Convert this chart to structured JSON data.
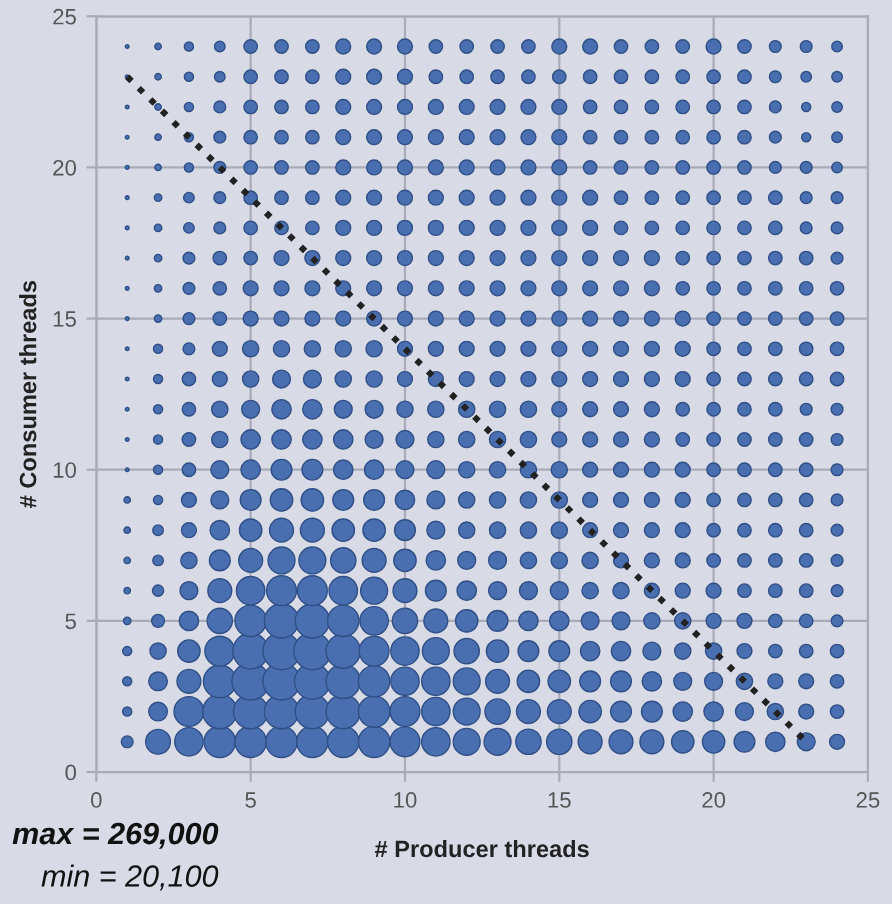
{
  "chart_data": {
    "type": "bubble",
    "xlabel": "# Producer threads",
    "ylabel": "# Consumer threads",
    "xlim": [
      0,
      25
    ],
    "ylim": [
      0,
      25
    ],
    "xticks": [
      0,
      5,
      10,
      15,
      20,
      25
    ],
    "yticks": [
      0,
      5,
      10,
      15,
      20,
      25
    ],
    "grid": true,
    "legend": false,
    "annotations": [
      "max = 269,000",
      "min = 20,100"
    ],
    "series": [
      {
        "color": "#4a6fb0",
        "x": [
          1,
          2,
          3,
          4,
          5,
          6,
          7,
          8,
          9,
          10,
          11,
          12,
          13,
          14,
          15,
          16,
          17,
          18,
          19,
          20,
          21,
          22,
          23,
          24,
          1,
          2,
          3,
          4,
          5,
          6,
          7,
          8,
          9,
          10,
          11,
          12,
          13,
          14,
          15,
          16,
          17,
          18,
          19,
          20,
          21,
          22,
          23,
          24,
          1,
          2,
          3,
          4,
          5,
          6,
          7,
          8,
          9,
          10,
          11,
          12,
          13,
          14,
          15,
          16,
          17,
          18,
          19,
          20,
          21,
          22,
          23,
          24,
          1,
          2,
          3,
          4,
          5,
          6,
          7,
          8,
          9,
          10,
          11,
          12,
          13,
          14,
          15,
          16,
          17,
          18,
          19,
          20,
          21,
          22,
          23,
          24,
          1,
          2,
          3,
          4,
          5,
          6,
          7,
          8,
          9,
          10,
          11,
          12,
          13,
          14,
          15,
          16,
          17,
          18,
          19,
          20,
          21,
          22,
          23,
          24,
          1,
          2,
          3,
          4,
          5,
          6,
          7,
          8,
          9,
          10,
          11,
          12,
          13,
          14,
          15,
          16,
          17,
          18,
          19,
          20,
          21,
          22,
          23,
          24,
          1,
          2,
          3,
          4,
          5,
          6,
          7,
          8,
          9,
          10,
          11,
          12,
          13,
          14,
          15,
          16,
          17,
          18,
          19,
          20,
          21,
          22,
          23,
          24,
          1,
          2,
          3,
          4,
          5,
          6,
          7,
          8,
          9,
          10,
          11,
          12,
          13,
          14,
          15,
          16,
          17,
          18,
          19,
          20,
          21,
          22,
          23,
          24,
          1,
          2,
          3,
          4,
          5,
          6,
          7,
          8,
          9,
          10,
          11,
          12,
          13,
          14,
          15,
          16,
          17,
          18,
          19,
          20,
          21,
          22,
          23,
          24,
          1,
          2,
          3,
          4,
          5,
          6,
          7,
          8,
          9,
          10,
          11,
          12,
          13,
          14,
          15,
          16,
          17,
          18,
          19,
          20,
          21,
          22,
          23,
          24,
          1,
          2,
          3,
          4,
          5,
          6,
          7,
          8,
          9,
          10,
          11,
          12,
          13,
          14,
          15,
          16,
          17,
          18,
          19,
          20,
          21,
          22,
          23,
          24,
          1,
          2,
          3,
          4,
          5,
          6,
          7,
          8,
          9,
          10,
          11,
          12,
          13,
          14,
          15,
          16,
          17,
          18,
          19,
          20,
          21,
          22,
          23,
          24,
          1,
          2,
          3,
          4,
          5,
          6,
          7,
          8,
          9,
          10,
          11,
          12,
          13,
          14,
          15,
          16,
          17,
          18,
          19,
          20,
          21,
          22,
          23,
          24,
          1,
          2,
          3,
          4,
          5,
          6,
          7,
          8,
          9,
          10,
          11,
          12,
          13,
          14,
          15,
          16,
          17,
          18,
          19,
          20,
          21,
          22,
          23,
          24,
          1,
          2,
          3,
          4,
          5,
          6,
          7,
          8,
          9,
          10,
          11,
          12,
          13,
          14,
          15,
          16,
          17,
          18,
          19,
          20,
          21,
          22,
          23,
          24,
          1,
          2,
          3,
          4,
          5,
          6,
          7,
          8,
          9,
          10,
          11,
          12,
          13,
          14,
          15,
          16,
          17,
          18,
          19,
          20,
          21,
          22,
          23,
          24,
          1,
          2,
          3,
          4,
          5,
          6,
          7,
          8,
          9,
          10,
          11,
          12,
          13,
          14,
          15,
          16,
          17,
          18,
          19,
          20,
          21,
          22,
          23,
          24,
          1,
          2,
          3,
          4,
          5,
          6,
          7,
          8,
          9,
          10,
          11,
          12,
          13,
          14,
          15,
          16,
          17,
          18,
          19,
          20,
          21,
          22,
          23,
          24,
          1,
          2,
          3,
          4,
          5,
          6,
          7,
          8,
          9,
          10,
          11,
          12,
          13,
          14,
          15,
          16,
          17,
          18,
          19,
          20,
          21,
          22,
          23,
          24,
          1,
          2,
          3,
          4,
          5,
          6,
          7,
          8,
          9,
          10,
          11,
          12,
          13,
          14,
          15,
          16,
          17,
          18,
          19,
          20,
          21,
          22,
          23,
          24,
          1,
          2,
          3,
          4,
          5,
          6,
          7,
          8,
          9,
          10,
          11,
          12,
          13,
          14,
          15,
          16,
          17,
          18,
          19,
          20,
          21,
          22,
          23,
          24,
          1,
          2,
          3,
          4,
          5,
          6,
          7,
          8,
          9,
          10,
          11,
          12,
          13,
          14,
          15,
          16,
          17,
          18,
          19,
          20,
          21,
          22,
          23,
          24,
          1,
          2,
          3,
          4,
          5,
          6,
          7,
          8,
          9,
          10,
          11,
          12,
          13,
          14,
          15,
          16,
          17,
          18,
          19,
          20,
          21,
          22,
          23,
          24,
          1,
          2,
          3,
          4,
          5,
          6,
          7,
          8,
          9,
          10,
          11,
          12,
          13,
          14,
          15,
          16,
          17,
          18,
          19,
          20,
          21,
          22,
          23,
          24
        ],
        "values": [
          1,
          1,
          1,
          1,
          1,
          1,
          1,
          1,
          1,
          1,
          1,
          1,
          1,
          1,
          1,
          1,
          1,
          1,
          1,
          1,
          1,
          1,
          1,
          1,
          2,
          2,
          2,
          2,
          2,
          2,
          2,
          2,
          2,
          2,
          2,
          2,
          2,
          2,
          2,
          2,
          2,
          2,
          2,
          2,
          2,
          2,
          2,
          2,
          3,
          3,
          3,
          3,
          3,
          3,
          3,
          3,
          3,
          3,
          3,
          3,
          3,
          3,
          3,
          3,
          3,
          3,
          3,
          3,
          3,
          3,
          3,
          3,
          4,
          4,
          4,
          4,
          4,
          4,
          4,
          4,
          4,
          4,
          4,
          4,
          4,
          4,
          4,
          4,
          4,
          4,
          4,
          4,
          4,
          4,
          4,
          4,
          5,
          5,
          5,
          5,
          5,
          5,
          5,
          5,
          5,
          5,
          5,
          5,
          5,
          5,
          5,
          5,
          5,
          5,
          5,
          5,
          5,
          5,
          5,
          5,
          6,
          6,
          6,
          6,
          6,
          6,
          6,
          6,
          6,
          6,
          6,
          6,
          6,
          6,
          6,
          6,
          6,
          6,
          6,
          6,
          6,
          6,
          6,
          6,
          7,
          7,
          7,
          7,
          7,
          7,
          7,
          7,
          7,
          7,
          7,
          7,
          7,
          7,
          7,
          7,
          7,
          7,
          7,
          7,
          7,
          7,
          7,
          7,
          8,
          8,
          8,
          8,
          8,
          8,
          8,
          8,
          8,
          8,
          8,
          8,
          8,
          8,
          8,
          8,
          8,
          8,
          8,
          8,
          8,
          8,
          8,
          8,
          9,
          9,
          9,
          9,
          9,
          9,
          9,
          9,
          9,
          9,
          9,
          9,
          9,
          9,
          9,
          9,
          9,
          9,
          9,
          9,
          9,
          9,
          9,
          9,
          10,
          10,
          10,
          10,
          10,
          10,
          10,
          10,
          10,
          10,
          10,
          10,
          10,
          10,
          10,
          10,
          10,
          10,
          10,
          10,
          10,
          10,
          10,
          10,
          11,
          11,
          11,
          11,
          11,
          11,
          11,
          11,
          11,
          11,
          11,
          11,
          11,
          11,
          11,
          11,
          11,
          11,
          11,
          11,
          11,
          11,
          11,
          11,
          12,
          12,
          12,
          12,
          12,
          12,
          12,
          12,
          12,
          12,
          12,
          12,
          12,
          12,
          12,
          12,
          12,
          12,
          12,
          12,
          12,
          12,
          12,
          12,
          13,
          13,
          13,
          13,
          13,
          13,
          13,
          13,
          13,
          13,
          13,
          13,
          13,
          13,
          13,
          13,
          13,
          13,
          13,
          13,
          13,
          13,
          13,
          13,
          14,
          14,
          14,
          14,
          14,
          14,
          14,
          14,
          14,
          14,
          14,
          14,
          14,
          14,
          14,
          14,
          14,
          14,
          14,
          14,
          14,
          14,
          14,
          14,
          15,
          15,
          15,
          15,
          15,
          15,
          15,
          15,
          15,
          15,
          15,
          15,
          15,
          15,
          15,
          15,
          15,
          15,
          15,
          15,
          15,
          15,
          15,
          15,
          16,
          16,
          16,
          16,
          16,
          16,
          16,
          16,
          16,
          16,
          16,
          16,
          16,
          16,
          16,
          16,
          16,
          16,
          16,
          16,
          16,
          16,
          16,
          16,
          17,
          17,
          17,
          17,
          17,
          17,
          17,
          17,
          17,
          17,
          17,
          17,
          17,
          17,
          17,
          17,
          17,
          17,
          17,
          17,
          17,
          17,
          17,
          17,
          18,
          18,
          18,
          18,
          18,
          18,
          18,
          18,
          18,
          18,
          18,
          18,
          18,
          18,
          18,
          18,
          18,
          18,
          18,
          18,
          18,
          18,
          18,
          18,
          19,
          19,
          19,
          19,
          19,
          19,
          19,
          19,
          19,
          19,
          19,
          19,
          19,
          19,
          19,
          19,
          19,
          19,
          19,
          19,
          19,
          19,
          19,
          19,
          20,
          20,
          20,
          20,
          20,
          20,
          20,
          20,
          20,
          20,
          20,
          20,
          20,
          20,
          20,
          20,
          20,
          20,
          20,
          20,
          20,
          20,
          20,
          20,
          21,
          21,
          21,
          21,
          21,
          21,
          21,
          21,
          21,
          21,
          21,
          21,
          21,
          21,
          21,
          21,
          21,
          21,
          21,
          21,
          21,
          21,
          21,
          21,
          22,
          22,
          22,
          22,
          22,
          22,
          22,
          22,
          22,
          22,
          22,
          22,
          22,
          22,
          22,
          22,
          22,
          22,
          22,
          22,
          22,
          22,
          22,
          22,
          23,
          23,
          23,
          23,
          23,
          23,
          23,
          23,
          23,
          23,
          23,
          23,
          23,
          23,
          23,
          23,
          23,
          23,
          23,
          23,
          23,
          23,
          23,
          23,
          24,
          24,
          24,
          24,
          24,
          24,
          24,
          24,
          24,
          24,
          24,
          24,
          24,
          24,
          24,
          24,
          24,
          24,
          24,
          24,
          24,
          24,
          24,
          24
        ],
        "sizes": [
          0.1,
          0.44,
          0.58,
          0.71,
          0.71,
          0.71,
          0.71,
          0.71,
          0.71,
          0.64,
          0.58,
          0.52,
          0.52,
          0.46,
          0.46,
          0.41,
          0.41,
          0.41,
          0.36,
          0.36,
          0.31,
          0.27,
          0.23,
          0.16,
          0.06,
          0.25,
          0.64,
          0.85,
          0.85,
          0.85,
          0.85,
          0.85,
          0.71,
          0.64,
          0.58,
          0.52,
          0.46,
          0.41,
          0.41,
          0.36,
          0.31,
          0.31,
          0.27,
          0.27,
          0.23,
          0.19,
          0.16,
          0.13,
          0.06,
          0.25,
          0.41,
          0.77,
          1,
          1,
          0.92,
          0.85,
          0.71,
          0.58,
          0.58,
          0.52,
          0.41,
          0.36,
          0.36,
          0.31,
          0.31,
          0.27,
          0.23,
          0.23,
          0.19,
          0.16,
          0.16,
          0.13,
          0.06,
          0.19,
          0.36,
          0.64,
          0.92,
          1,
          1,
          0.85,
          0.64,
          0.58,
          0.52,
          0.46,
          0.36,
          0.31,
          0.31,
          0.27,
          0.27,
          0.23,
          0.19,
          0.19,
          0.16,
          0.13,
          0.13,
          0.13,
          0.04,
          0.12,
          0.27,
          0.46,
          0.71,
          0.85,
          0.85,
          0.71,
          0.58,
          0.46,
          0.41,
          0.36,
          0.31,
          0.27,
          0.27,
          0.23,
          0.23,
          0.19,
          0.19,
          0.16,
          0.16,
          0.13,
          0.13,
          0.1,
          0.03,
          0.09,
          0.23,
          0.41,
          0.58,
          0.64,
          0.64,
          0.58,
          0.52,
          0.41,
          0.31,
          0.27,
          0.23,
          0.23,
          0.23,
          0.19,
          0.19,
          0.16,
          0.16,
          0.16,
          0.13,
          0.13,
          0.13,
          0.1,
          0.03,
          0.08,
          0.19,
          0.31,
          0.41,
          0.52,
          0.52,
          0.46,
          0.41,
          0.36,
          0.27,
          0.23,
          0.23,
          0.19,
          0.19,
          0.19,
          0.16,
          0.16,
          0.16,
          0.13,
          0.13,
          0.13,
          0.13,
          0.1,
          0.03,
          0.08,
          0.16,
          0.27,
          0.36,
          0.41,
          0.41,
          0.36,
          0.36,
          0.31,
          0.23,
          0.19,
          0.19,
          0.19,
          0.19,
          0.16,
          0.16,
          0.16,
          0.16,
          0.13,
          0.13,
          0.13,
          0.13,
          0.1,
          0.03,
          0.06,
          0.16,
          0.23,
          0.31,
          0.36,
          0.36,
          0.31,
          0.31,
          0.27,
          0.23,
          0.19,
          0.19,
          0.19,
          0.19,
          0.16,
          0.16,
          0.16,
          0.16,
          0.13,
          0.13,
          0.13,
          0.13,
          0.1,
          0.01,
          0.06,
          0.13,
          0.23,
          0.27,
          0.31,
          0.31,
          0.27,
          0.27,
          0.23,
          0.23,
          0.19,
          0.19,
          0.19,
          0.19,
          0.16,
          0.16,
          0.16,
          0.16,
          0.13,
          0.13,
          0.13,
          0.13,
          0.1,
          0.01,
          0.06,
          0.13,
          0.19,
          0.27,
          0.27,
          0.27,
          0.27,
          0.23,
          0.23,
          0.19,
          0.19,
          0.19,
          0.19,
          0.16,
          0.16,
          0.16,
          0.16,
          0.13,
          0.13,
          0.13,
          0.13,
          0.13,
          0.1,
          0.01,
          0.06,
          0.13,
          0.19,
          0.23,
          0.27,
          0.27,
          0.23,
          0.23,
          0.19,
          0.19,
          0.19,
          0.19,
          0.19,
          0.16,
          0.16,
          0.16,
          0.16,
          0.13,
          0.13,
          0.13,
          0.13,
          0.1,
          0.1,
          0.01,
          0.06,
          0.13,
          0.16,
          0.19,
          0.23,
          0.23,
          0.19,
          0.19,
          0.16,
          0.16,
          0.16,
          0.16,
          0.16,
          0.16,
          0.16,
          0.16,
          0.16,
          0.16,
          0.13,
          0.13,
          0.13,
          0.13,
          0.13,
          0.01,
          0.06,
          0.1,
          0.16,
          0.19,
          0.19,
          0.19,
          0.19,
          0.19,
          0.16,
          0.16,
          0.16,
          0.16,
          0.16,
          0.16,
          0.16,
          0.16,
          0.16,
          0.16,
          0.13,
          0.13,
          0.13,
          0.13,
          0.13,
          0.01,
          0.04,
          0.1,
          0.13,
          0.16,
          0.16,
          0.16,
          0.16,
          0.16,
          0.16,
          0.16,
          0.16,
          0.16,
          0.16,
          0.16,
          0.16,
          0.16,
          0.16,
          0.16,
          0.13,
          0.13,
          0.13,
          0.13,
          0.13,
          0.01,
          0.04,
          0.1,
          0.13,
          0.16,
          0.16,
          0.16,
          0.16,
          0.16,
          0.16,
          0.16,
          0.16,
          0.16,
          0.16,
          0.16,
          0.16,
          0.16,
          0.16,
          0.13,
          0.13,
          0.13,
          0.13,
          0.13,
          0.13,
          0.01,
          0.04,
          0.1,
          0.13,
          0.13,
          0.16,
          0.16,
          0.16,
          0.16,
          0.16,
          0.16,
          0.16,
          0.16,
          0.16,
          0.16,
          0.16,
          0.16,
          0.16,
          0.13,
          0.13,
          0.13,
          0.13,
          0.13,
          0.1,
          0.01,
          0.04,
          0.08,
          0.1,
          0.13,
          0.13,
          0.13,
          0.16,
          0.16,
          0.16,
          0.16,
          0.16,
          0.16,
          0.16,
          0.16,
          0.16,
          0.13,
          0.13,
          0.13,
          0.13,
          0.13,
          0.13,
          0.1,
          0.1,
          0.01,
          0.04,
          0.08,
          0.1,
          0.13,
          0.13,
          0.13,
          0.16,
          0.16,
          0.16,
          0.16,
          0.16,
          0.16,
          0.16,
          0.16,
          0.16,
          0.13,
          0.13,
          0.13,
          0.13,
          0.13,
          0.13,
          0.1,
          0.1,
          0.01,
          0.03,
          0.06,
          0.1,
          0.13,
          0.13,
          0.13,
          0.16,
          0.16,
          0.16,
          0.16,
          0.16,
          0.16,
          0.16,
          0.16,
          0.13,
          0.13,
          0.13,
          0.13,
          0.13,
          0.13,
          0.1,
          0.1,
          0.08,
          0.01,
          0.03,
          0.06,
          0.1,
          0.13,
          0.13,
          0.13,
          0.16,
          0.16,
          0.16,
          0.16,
          0.16,
          0.16,
          0.16,
          0.16,
          0.13,
          0.13,
          0.13,
          0.13,
          0.13,
          0.13,
          0.1,
          0.06,
          0.08,
          0.01,
          0.03,
          0.06,
          0.1,
          0.13,
          0.13,
          0.13,
          0.16,
          0.16,
          0.16,
          0.16,
          0.16,
          0.16,
          0.16,
          0.16,
          0.13,
          0.13,
          0.13,
          0.13,
          0.13,
          0.13,
          0.1,
          0.06,
          0.08,
          0.01,
          0.03,
          0.06,
          0.08,
          0.13,
          0.13,
          0.13,
          0.16,
          0.16,
          0.16,
          0.13,
          0.13,
          0.13,
          0.13,
          0.13,
          0.13,
          0.13,
          0.13,
          0.13,
          0.13,
          0.13,
          0.1,
          0.08,
          0.08,
          0.01,
          0.03,
          0.06,
          0.08,
          0.13,
          0.13,
          0.13,
          0.16,
          0.16,
          0.16,
          0.13,
          0.13,
          0.13,
          0.13,
          0.16,
          0.16,
          0.13,
          0.13,
          0.13,
          0.16,
          0.13,
          0.1,
          0.1,
          0.08
        ]
      },
      {
        "type": "line",
        "color": "#222222",
        "line_style": "dotted",
        "x": [
          1,
          23
        ],
        "values": [
          23,
          1
        ]
      }
    ]
  }
}
